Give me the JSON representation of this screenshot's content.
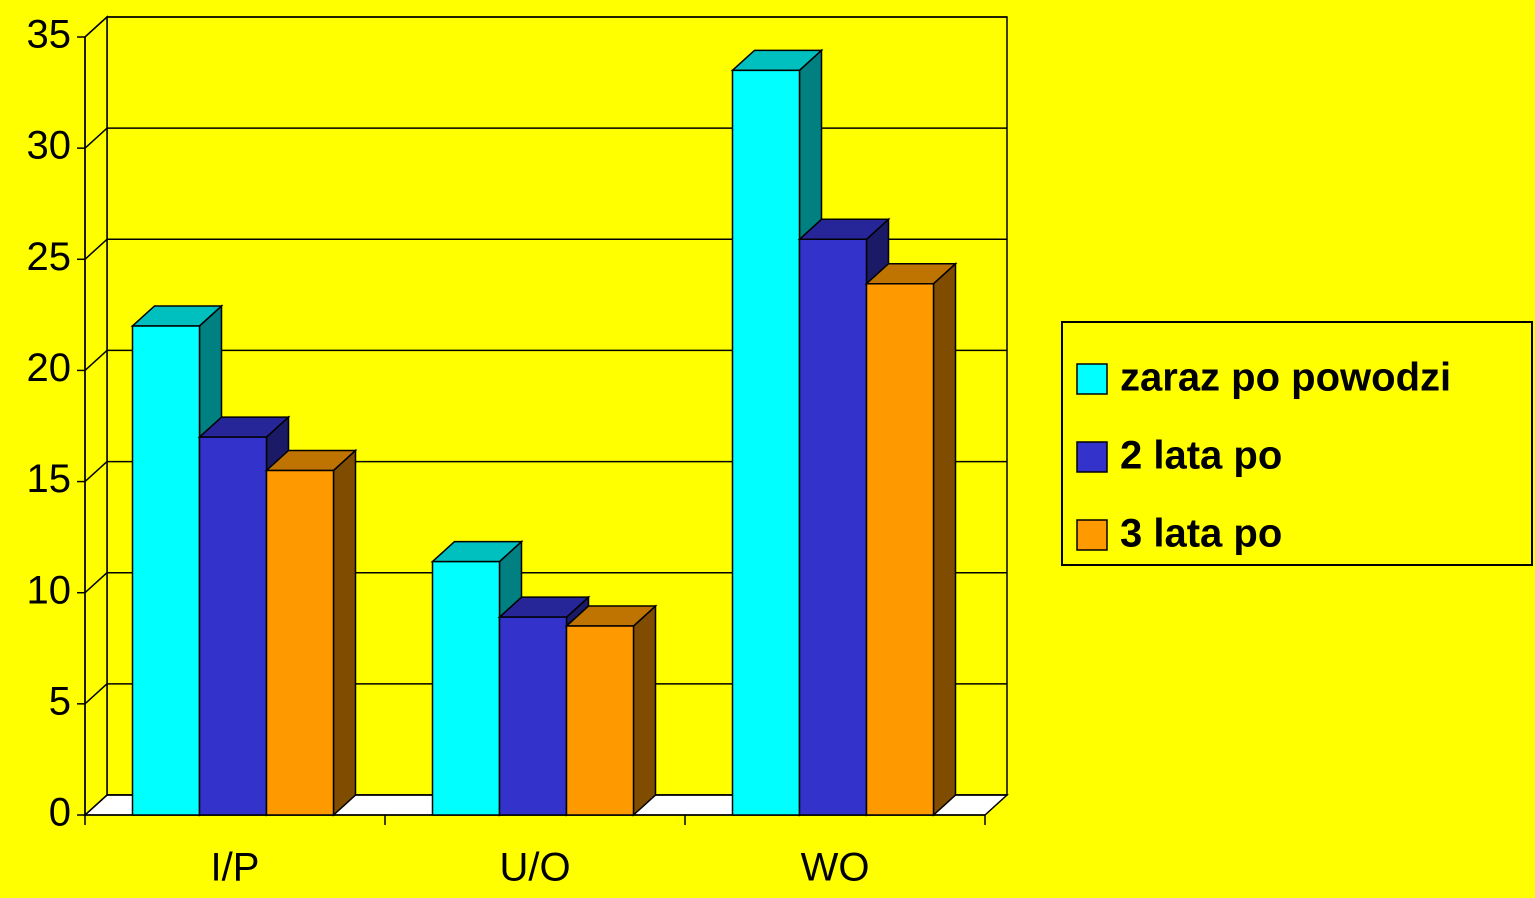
{
  "chart_data": {
    "type": "bar3d",
    "categories": [
      "I/P",
      "U/O",
      "WO"
    ],
    "series": [
      {
        "name": "zaraz po powodzi",
        "color": "#00ffff",
        "values": [
          22,
          11.4,
          33.5
        ]
      },
      {
        "name": "2 lata po",
        "color": "#3333cc",
        "values": [
          17,
          8.9,
          25.9
        ]
      },
      {
        "name": "3 lata po",
        "color": "#ff9900",
        "values": [
          15.5,
          8.5,
          23.9
        ]
      }
    ],
    "ylim": [
      0,
      35
    ],
    "yticks": [
      0,
      5,
      10,
      15,
      20,
      25,
      30,
      35
    ],
    "grid": true,
    "legend": "right"
  }
}
